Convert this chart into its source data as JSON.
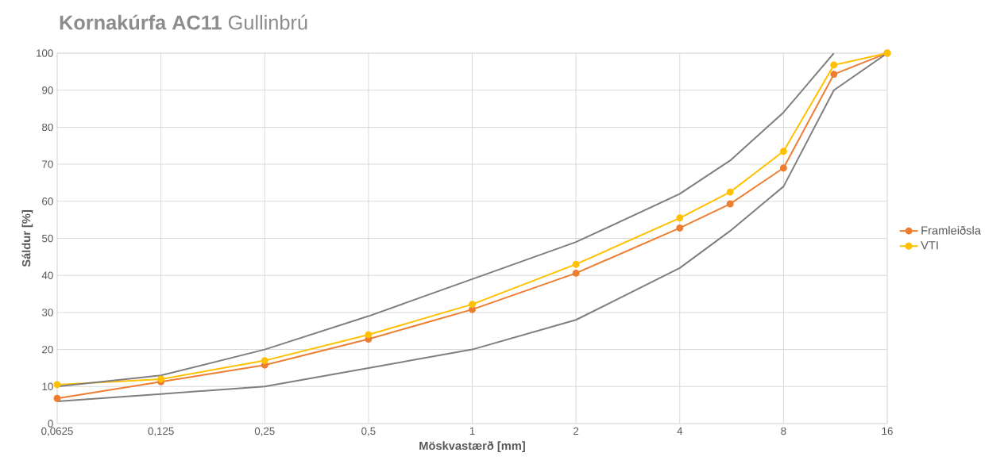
{
  "chart_data": {
    "type": "line",
    "title": "**Kornakúrfa AC11** Gullinbrú",
    "xlabel": "Möskvastærð [mm]",
    "ylabel": "Sáldur [%]",
    "log": "x",
    "x": [
      0.0625,
      0.125,
      0.25,
      0.5,
      1,
      2,
      4,
      5.6,
      8,
      11.2,
      16
    ],
    "xlim": [
      0.0625,
      16
    ],
    "xticks": [
      {
        "value": 0.0625,
        "label": "0,0625"
      },
      {
        "value": 0.125,
        "label": "0,125"
      },
      {
        "value": 0.25,
        "label": "0,25"
      },
      {
        "value": 0.5,
        "label": "0,5"
      },
      1,
      2,
      4,
      8,
      16
    ],
    "ylim": [
      0,
      100
    ],
    "yticks": [
      0,
      10,
      20,
      30,
      40,
      50,
      60,
      70,
      80,
      90,
      100
    ],
    "grid": true,
    "legend": "right",
    "marker": "circle",
    "series": [
      {
        "name": "Framleiðsla",
        "color": "#ed7d31",
        "values": [
          6.8,
          11.3,
          15.8,
          22.8,
          30.8,
          40.6,
          52.8,
          59.3,
          69,
          94.3,
          100
        ]
      },
      {
        "name": "VTI",
        "color": "#ffc000",
        "values": [
          10.5,
          12,
          17,
          24,
          32.2,
          43,
          55.5,
          62.5,
          73.5,
          96.8,
          100
        ]
      },
      {
        "color": "#7f7f7f",
        "marker": "none",
        "values": [
          10,
          13,
          20,
          29,
          39,
          49,
          62,
          71,
          84,
          100,
          null
        ]
      },
      {
        "color": "#7f7f7f",
        "marker": "none",
        "values": [
          6,
          8,
          10,
          15,
          20,
          28,
          42,
          52,
          64,
          90,
          100
        ]
      }
    ]
  }
}
